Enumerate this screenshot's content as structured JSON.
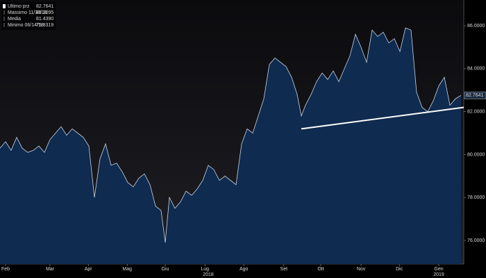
{
  "chart_data": {
    "type": "area",
    "legend": [
      {
        "name": "Ultimo prz",
        "value": "82.7641"
      },
      {
        "name": "Massimo 11/30/18",
        "value": "86.2095"
      },
      {
        "name": "Media",
        "value": "81.4390"
      },
      {
        "name": "Minimo 06/14/18",
        "value": "75.8319"
      }
    ],
    "x": [
      0,
      1,
      2,
      3,
      4,
      5,
      6,
      7,
      8,
      9,
      10,
      11,
      12,
      13,
      14,
      15,
      16,
      17,
      18,
      19,
      20,
      21,
      22,
      23,
      24,
      25,
      26,
      27,
      28,
      29,
      29.75,
      30.5,
      31.5,
      32.5,
      33.5,
      34.5,
      35.5,
      36.5,
      37.5,
      38.5,
      39.5,
      40.5,
      41.5,
      42.5,
      43.5,
      44.5,
      45.5,
      46.5,
      47.5,
      48.5,
      49.5,
      50.5,
      51.5,
      52.5,
      53.5,
      54.25,
      55,
      56,
      57,
      58,
      59,
      60,
      61,
      62,
      63,
      64,
      65,
      66,
      67,
      68,
      69,
      70,
      71,
      72,
      73,
      74,
      75,
      76,
      77,
      78,
      79,
      80,
      81,
      82,
      83
    ],
    "series": [
      {
        "name": "Ultimo prz",
        "color": "#0f2b4f",
        "line_color": "#c9d6ea",
        "values": [
          80.3,
          80.6,
          80.2,
          80.8,
          80.3,
          80.1,
          80.2,
          80.4,
          80.1,
          80.7,
          81.0,
          81.3,
          80.9,
          81.2,
          81.0,
          80.8,
          80.4,
          78.0,
          79.8,
          80.5,
          79.5,
          79.6,
          79.2,
          78.7,
          78.5,
          78.9,
          79.1,
          78.6,
          77.6,
          77.4,
          75.9,
          78.0,
          77.5,
          77.8,
          78.3,
          78.1,
          78.4,
          78.8,
          79.5,
          79.3,
          78.8,
          79.0,
          78.8,
          78.6,
          80.5,
          81.2,
          81.0,
          81.8,
          82.6,
          84.2,
          84.5,
          84.3,
          84.1,
          83.6,
          82.8,
          81.8,
          82.3,
          82.8,
          83.4,
          83.8,
          83.5,
          83.9,
          83.4,
          84.0,
          84.6,
          85.6,
          85.0,
          84.3,
          85.8,
          85.5,
          85.7,
          85.2,
          85.4,
          84.8,
          85.9,
          85.8,
          82.9,
          82.2,
          82.0,
          82.5,
          83.2,
          83.6,
          82.3,
          82.6,
          82.76
        ]
      }
    ],
    "trendline": {
      "x": [
        54.25,
        83.5
      ],
      "values": [
        81.2,
        82.2
      ],
      "color": "#ffffff"
    },
    "xlim": [
      0,
      83.5
    ],
    "ylim": [
      74.9,
      87.2
    ],
    "xticks": [
      {
        "value": 1,
        "label": "Feb"
      },
      {
        "value": 9,
        "label": "Mar"
      },
      {
        "value": 15.9,
        "label": "Apr"
      },
      {
        "value": 22.9,
        "label": "Mag"
      },
      {
        "value": 29.75,
        "label": "Giu"
      },
      {
        "value": 36.9,
        "label": "Lug"
      },
      {
        "value": 43.9,
        "label": "Ago"
      },
      {
        "value": 51.1,
        "label": "Set"
      },
      {
        "value": 57.75,
        "label": "Ott"
      },
      {
        "value": 65,
        "label": "Nov"
      },
      {
        "value": 71.9,
        "label": "Dic"
      },
      {
        "value": 79,
        "label": "Gen"
      }
    ],
    "year_labels": [
      {
        "value": 37.5,
        "label": "2018"
      },
      {
        "value": 79,
        "label": "2019"
      }
    ],
    "yticks": [
      {
        "value": 76,
        "label": "76.0000"
      },
      {
        "value": 78,
        "label": "78.0000"
      },
      {
        "value": 80,
        "label": "80.0000"
      },
      {
        "value": 82,
        "label": "82.0000"
      },
      {
        "value": 84,
        "label": "84.0000"
      },
      {
        "value": 86,
        "label": "86.0000"
      }
    ],
    "grid": false
  }
}
